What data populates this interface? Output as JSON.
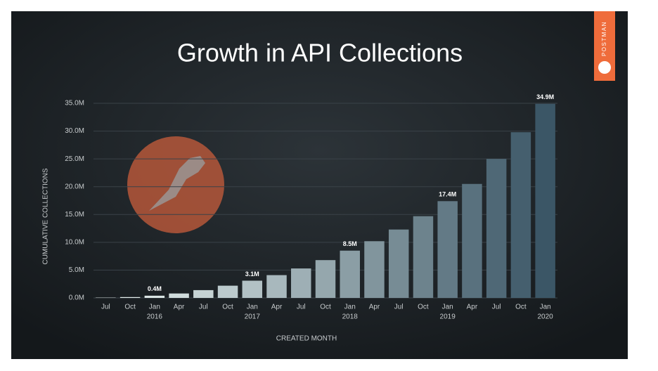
{
  "brand": "POSTMAN",
  "chart_data": {
    "type": "bar",
    "title": "Growth in API Collections",
    "x_label": "CREATED MONTH",
    "y_label": "CUMULATIVE COLLECTIONS",
    "categories": [
      "Jul",
      "Oct",
      "Jan",
      "Apr",
      "Jul",
      "Oct",
      "Jan",
      "Apr",
      "Jul",
      "Oct",
      "Jan",
      "Apr",
      "Jul",
      "Oct",
      "Jan",
      "Apr",
      "Jul",
      "Oct",
      "Jan"
    ],
    "category_years": [
      null,
      null,
      "2016",
      null,
      null,
      null,
      "2017",
      null,
      null,
      null,
      "2018",
      null,
      null,
      null,
      "2019",
      null,
      null,
      null,
      "2020"
    ],
    "values": [
      0.05,
      0.15,
      0.4,
      0.8,
      1.4,
      2.2,
      3.1,
      4.1,
      5.3,
      6.8,
      8.5,
      10.2,
      12.3,
      14.7,
      17.4,
      20.5,
      25.0,
      29.8,
      34.9
    ],
    "value_labels": [
      null,
      null,
      "0.4M",
      null,
      null,
      null,
      "3.1M",
      null,
      null,
      null,
      "8.5M",
      null,
      null,
      null,
      "17.4M",
      null,
      null,
      null,
      "34.9M"
    ],
    "color_range": [
      "#eef7f4",
      "#3b5666"
    ],
    "ylim": [
      0,
      35
    ],
    "yticks": [
      {
        "value": 0,
        "label": "0.0M"
      },
      {
        "value": 5,
        "label": "5.0M"
      },
      {
        "value": 10,
        "label": "10.0M"
      },
      {
        "value": 15,
        "label": "15.0M"
      },
      {
        "value": 20,
        "label": "20.0M"
      },
      {
        "value": 25,
        "label": "25.0M"
      },
      {
        "value": 30,
        "label": "30.0M"
      },
      {
        "value": 35,
        "label": "35.0M"
      }
    ],
    "grid": true
  }
}
